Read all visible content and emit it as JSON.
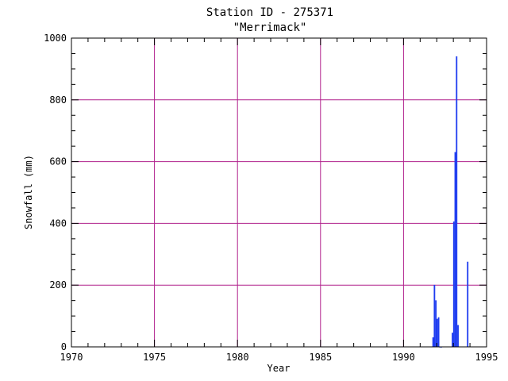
{
  "chart_data": {
    "type": "bar",
    "title": "Station ID - 275371",
    "subtitle": "\"Merrimack\"",
    "xlabel": "Year",
    "ylabel": "Snowfall (mm)",
    "xlim": [
      1970,
      1995
    ],
    "ylim": [
      0,
      1000
    ],
    "xticks": [
      1970,
      1975,
      1980,
      1985,
      1990,
      1995
    ],
    "yticks": [
      0,
      200,
      400,
      600,
      800,
      1000
    ],
    "grid": true,
    "colors": {
      "bars": "#1f3df0",
      "grid": "#b0208c",
      "axes": "#000000"
    },
    "series": [
      {
        "x": [
          1991.75,
          1991.833,
          1991.917,
          1992.0,
          1992.083,
          1992.167,
          1992.25,
          1992.917,
          1993.0,
          1993.083,
          1993.167,
          1993.25,
          1993.833
        ],
        "values": [
          30,
          200,
          150,
          90,
          95,
          0,
          0,
          45,
          405,
          630,
          940,
          70,
          275
        ]
      }
    ]
  }
}
